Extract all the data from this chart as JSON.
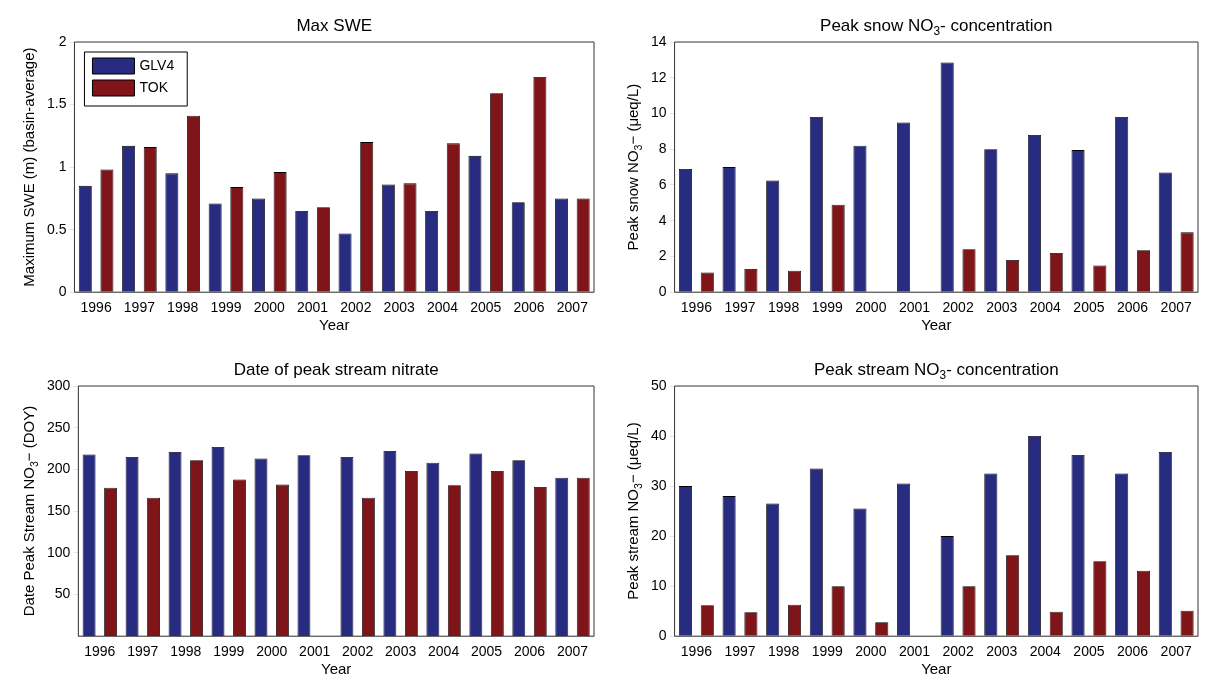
{
  "chart_data": [
    {
      "type": "bar",
      "title": "Max SWE",
      "xlabel": "Year",
      "ylabel": "Maximum SWE (m) (basin-average)",
      "categories": [
        "1996",
        "1997",
        "1998",
        "1999",
        "2000",
        "2001",
        "2002",
        "2003",
        "2004",
        "2005",
        "2006",
        "2007"
      ],
      "series": [
        {
          "name": "GLV4",
          "color": "#282c80",
          "values": [
            0.85,
            1.17,
            0.95,
            0.71,
            0.75,
            0.65,
            0.47,
            0.86,
            0.65,
            1.09,
            0.72,
            0.75
          ]
        },
        {
          "name": "TOK",
          "color": "#7f1518",
          "values": [
            0.98,
            1.16,
            1.41,
            0.84,
            0.96,
            0.68,
            1.2,
            0.87,
            1.19,
            1.59,
            1.72,
            0.75
          ]
        }
      ],
      "ylim": [
        0,
        2
      ],
      "yticks": [
        0,
        0.5,
        1,
        1.5,
        2
      ],
      "grid": false,
      "legend": "top left"
    },
    {
      "type": "bar",
      "title": "Peak snow NO$_{3}$- concentration",
      "xlabel": "Year",
      "ylabel": "Peak snow NO$_{3}$− (μeq/L)",
      "categories": [
        "1996",
        "1997",
        "1998",
        "1999",
        "2000",
        "2001",
        "2002",
        "2003",
        "2004",
        "2005",
        "2006",
        "2007"
      ],
      "series": [
        {
          "color": "#282c80",
          "values": [
            6.9,
            7.0,
            6.25,
            9.8,
            8.2,
            9.5,
            12.85,
            8.0,
            8.8,
            7.95,
            9.8,
            6.7
          ]
        },
        {
          "color": "#7f1518",
          "values": [
            1.1,
            1.3,
            1.2,
            4.9,
            null,
            null,
            2.4,
            1.8,
            2.2,
            1.5,
            2.35,
            3.35
          ]
        }
      ],
      "ylim": [
        0,
        14
      ],
      "yticks": [
        0,
        2,
        4,
        6,
        8,
        10,
        12,
        14
      ],
      "grid": false
    },
    {
      "type": "bar",
      "title": "Date of peak stream nitrate",
      "xlabel": "Year",
      "ylabel": "Date Peak Stream NO$_{3}$− (DOY)",
      "categories": [
        "1996",
        "1997",
        "1998",
        "1999",
        "2000",
        "2001",
        "2002",
        "2003",
        "2004",
        "2005",
        "2006",
        "2007"
      ],
      "series": [
        {
          "color": "#282c80",
          "values": [
            218,
            215,
            221,
            227,
            213,
            217,
            215,
            222,
            208,
            219,
            211,
            190
          ]
        },
        {
          "color": "#7f1518",
          "values": [
            178,
            166,
            211,
            188,
            182,
            null,
            166,
            198,
            181,
            198,
            179,
            190
          ]
        }
      ],
      "ylim": [
        0,
        300
      ],
      "yticks": [
        50,
        100,
        150,
        200,
        250,
        300
      ],
      "grid": false
    },
    {
      "type": "bar",
      "title": "Peak stream NO$_{3}$- concentration",
      "xlabel": "Year",
      "ylabel": "Peak stream NO$_{3}$− (μeq/L)",
      "categories": [
        "1996",
        "1997",
        "1998",
        "1999",
        "2000",
        "2001",
        "2002",
        "2003",
        "2004",
        "2005",
        "2006",
        "2007"
      ],
      "series": [
        {
          "color": "#282c80",
          "values": [
            30,
            28,
            26.5,
            33.5,
            25.5,
            30.5,
            20,
            32.5,
            40,
            36.2,
            32.5,
            36.8
          ]
        },
        {
          "color": "#7f1518",
          "values": [
            6.2,
            4.8,
            6.3,
            10,
            2.8,
            null,
            10,
            16.2,
            4.9,
            15,
            13.1,
            5.1
          ]
        }
      ],
      "ylim": [
        0,
        50
      ],
      "yticks": [
        0,
        10,
        20,
        30,
        40,
        50
      ],
      "grid": false
    }
  ]
}
